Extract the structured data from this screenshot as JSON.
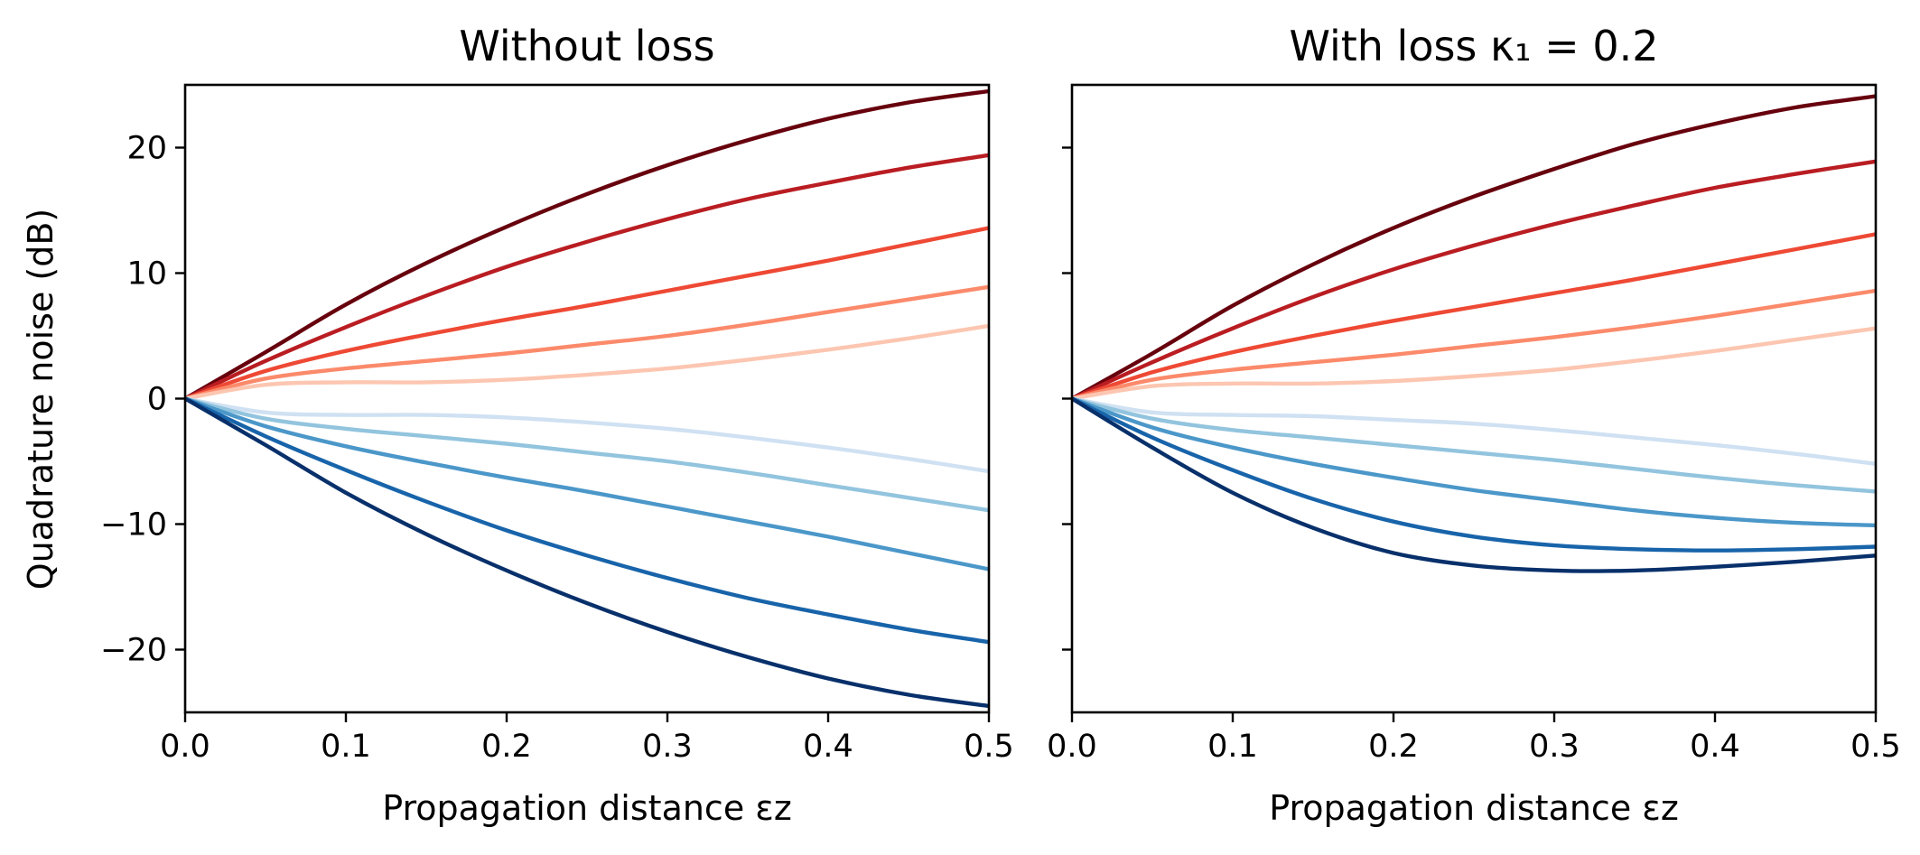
{
  "chart_data": [
    {
      "type": "line",
      "title": "Without loss",
      "xlabel": "Propagation distance εz",
      "ylabel": "Quadrature noise (dB)",
      "xlim": [
        0,
        0.5
      ],
      "ylim": [
        -25,
        25
      ],
      "xticks": [
        "0.0",
        "0.1",
        "0.2",
        "0.3",
        "0.4",
        "0.5"
      ],
      "yticks": [
        "−20",
        "−10",
        "0",
        "10",
        "20"
      ],
      "x": [
        0,
        0.05,
        0.1,
        0.15,
        0.2,
        0.25,
        0.3,
        0.35,
        0.4,
        0.45,
        0.5
      ],
      "series": [
        {
          "color": "#67000d",
          "values": [
            0,
            3.7,
            7.5,
            10.8,
            13.7,
            16.3,
            18.6,
            20.6,
            22.3,
            23.6,
            24.5
          ]
        },
        {
          "color": "#b91d22",
          "values": [
            0,
            3.0,
            5.7,
            8.2,
            10.5,
            12.5,
            14.3,
            15.9,
            17.2,
            18.4,
            19.4
          ]
        },
        {
          "color": "#ee4934",
          "values": [
            0,
            2.2,
            3.8,
            5.1,
            6.3,
            7.4,
            8.6,
            9.8,
            11.0,
            12.3,
            13.6
          ]
        },
        {
          "color": "#fb8a6b",
          "values": [
            0,
            1.6,
            2.4,
            3.0,
            3.6,
            4.3,
            5.0,
            5.9,
            6.9,
            7.9,
            8.9
          ]
        },
        {
          "color": "#fcc6b1",
          "values": [
            0,
            1.1,
            1.3,
            1.3,
            1.5,
            1.9,
            2.4,
            3.1,
            3.9,
            4.8,
            5.8
          ]
        },
        {
          "color": "#cfe1f2",
          "values": [
            0,
            -1.1,
            -1.3,
            -1.3,
            -1.5,
            -1.9,
            -2.4,
            -3.1,
            -3.9,
            -4.8,
            -5.8
          ]
        },
        {
          "color": "#92c4de",
          "values": [
            0,
            -1.6,
            -2.4,
            -3.0,
            -3.6,
            -4.3,
            -5.0,
            -5.9,
            -6.9,
            -7.9,
            -8.9
          ]
        },
        {
          "color": "#4b97c9",
          "values": [
            0,
            -2.2,
            -3.8,
            -5.1,
            -6.3,
            -7.4,
            -8.6,
            -9.8,
            -11.0,
            -12.3,
            -13.6
          ]
        },
        {
          "color": "#1864aa",
          "values": [
            0,
            -3.0,
            -5.7,
            -8.2,
            -10.5,
            -12.5,
            -14.3,
            -15.9,
            -17.2,
            -18.4,
            -19.4
          ]
        },
        {
          "color": "#08306b",
          "values": [
            0,
            -3.7,
            -7.5,
            -10.8,
            -13.7,
            -16.3,
            -18.6,
            -20.6,
            -22.3,
            -23.6,
            -24.5
          ]
        }
      ]
    },
    {
      "type": "line",
      "title": "With loss κ₁ = 0.2",
      "xlabel": "Propagation distance εz",
      "ylabel": "",
      "xlim": [
        0,
        0.5
      ],
      "ylim": [
        -25,
        25
      ],
      "xticks": [
        "0.0",
        "0.1",
        "0.2",
        "0.3",
        "0.4",
        "0.5"
      ],
      "yticks": [],
      "x": [
        0,
        0.05,
        0.1,
        0.15,
        0.2,
        0.25,
        0.3,
        0.35,
        0.4,
        0.45,
        0.5
      ],
      "series": [
        {
          "color": "#67000d",
          "values": [
            0,
            3.6,
            7.4,
            10.7,
            13.6,
            16.1,
            18.3,
            20.3,
            21.9,
            23.2,
            24.1
          ]
        },
        {
          "color": "#b91d22",
          "values": [
            0,
            2.9,
            5.6,
            8.1,
            10.3,
            12.2,
            13.9,
            15.4,
            16.8,
            17.9,
            18.9
          ]
        },
        {
          "color": "#ee4934",
          "values": [
            0,
            2.1,
            3.7,
            5.0,
            6.2,
            7.3,
            8.4,
            9.5,
            10.7,
            11.9,
            13.1
          ]
        },
        {
          "color": "#fb8a6b",
          "values": [
            0,
            1.5,
            2.3,
            2.9,
            3.5,
            4.2,
            4.9,
            5.7,
            6.6,
            7.6,
            8.6
          ]
        },
        {
          "color": "#fcc6b1",
          "values": [
            0,
            1.0,
            1.2,
            1.2,
            1.4,
            1.8,
            2.3,
            3.0,
            3.8,
            4.7,
            5.6
          ]
        },
        {
          "color": "#cfe1f2",
          "values": [
            0,
            -1.1,
            -1.3,
            -1.4,
            -1.7,
            -2.0,
            -2.5,
            -3.1,
            -3.7,
            -4.4,
            -5.2
          ]
        },
        {
          "color": "#92c4de",
          "values": [
            0,
            -1.6,
            -2.5,
            -3.1,
            -3.7,
            -4.3,
            -4.9,
            -5.6,
            -6.3,
            -6.9,
            -7.4
          ]
        },
        {
          "color": "#4b97c9",
          "values": [
            0,
            -2.3,
            -3.9,
            -5.2,
            -6.3,
            -7.3,
            -8.1,
            -8.9,
            -9.5,
            -9.9,
            -10.1
          ]
        },
        {
          "color": "#1864aa",
          "values": [
            0,
            -3.1,
            -5.7,
            -8.0,
            -9.8,
            -11.0,
            -11.7,
            -12.0,
            -12.1,
            -12.0,
            -11.8
          ]
        },
        {
          "color": "#08306b",
          "values": [
            0,
            -3.9,
            -7.5,
            -10.3,
            -12.3,
            -13.3,
            -13.7,
            -13.7,
            -13.4,
            -13.0,
            -12.5
          ]
        }
      ]
    }
  ]
}
